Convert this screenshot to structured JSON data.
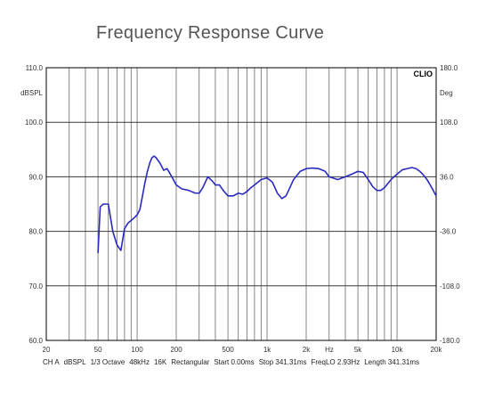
{
  "chart_data": {
    "type": "line",
    "title": "Frequency Response Curve",
    "brand": "CLIO",
    "y_left_unit": "dBSPL",
    "y_right_unit": "Deg",
    "x_unit_label": "Hz",
    "x_scale": "log",
    "xlim": [
      20,
      20000
    ],
    "ylim_left": [
      60,
      110
    ],
    "ylim_right": [
      -180,
      180
    ],
    "grid": true,
    "line_color": "#2a2ac0",
    "x_tick_labels": [
      {
        "value": 20,
        "label": "20"
      },
      {
        "value": 50,
        "label": "50"
      },
      {
        "value": 100,
        "label": "100"
      },
      {
        "value": 200,
        "label": "200"
      },
      {
        "value": 500,
        "label": "500"
      },
      {
        "value": 1000,
        "label": "1k"
      },
      {
        "value": 2000,
        "label": "2k"
      },
      {
        "value": 5000,
        "label": "5k"
      },
      {
        "value": 10000,
        "label": "10k"
      },
      {
        "value": 20000,
        "label": "20k"
      }
    ],
    "y_left_ticks": [
      "60.0",
      "70.0",
      "80.0",
      "90.0",
      "100.0",
      "110.0"
    ],
    "y_right_ticks": [
      "-180.0",
      "-108.0",
      "-36.0",
      "36.0",
      "108.0",
      "180.0"
    ],
    "series": [
      {
        "x": [
          50,
          52,
          55,
          60,
          65,
          70,
          75,
          80,
          85,
          90,
          95,
          100,
          105,
          110,
          115,
          120,
          125,
          130,
          135,
          140,
          150,
          160,
          170,
          180,
          190,
          200,
          220,
          250,
          280,
          300,
          320,
          350,
          380,
          400,
          430,
          460,
          500,
          550,
          600,
          650,
          700,
          750,
          800,
          900,
          1000,
          1100,
          1200,
          1300,
          1400,
          1600,
          1800,
          2000,
          2200,
          2500,
          2800,
          3000,
          3500,
          4000,
          4500,
          5000,
          5500,
          6000,
          6500,
          7000,
          7500,
          8000,
          9000,
          10000,
          11000,
          12000,
          13000,
          14000,
          15000,
          16000,
          17000,
          18000,
          19000,
          20000
        ],
        "y": [
          76,
          84.5,
          85,
          85,
          80,
          77.5,
          76.5,
          80.5,
          81.5,
          82,
          82.5,
          83,
          84,
          86.5,
          89,
          91,
          92.5,
          93.5,
          93.8,
          93.5,
          92.5,
          91.2,
          91.5,
          90.5,
          89.5,
          88.5,
          87.8,
          87.5,
          87,
          87,
          88,
          90,
          89.2,
          88.5,
          88.5,
          87.5,
          86.5,
          86.5,
          87,
          86.8,
          87.3,
          88,
          88.5,
          89.5,
          89.8,
          89,
          87,
          86,
          86.5,
          89.5,
          91,
          91.5,
          91.6,
          91.5,
          91,
          90,
          89.5,
          90,
          90.5,
          91,
          90.8,
          89.5,
          88.2,
          87.5,
          87.5,
          88,
          89.5,
          90.5,
          91.3,
          91.5,
          91.7,
          91.5,
          91,
          90.3,
          89.5,
          88.5,
          87.5,
          86.5
        ]
      }
    ]
  },
  "footer": {
    "items": [
      "CH A",
      "dBSPL",
      "1/3 Octave",
      "48kHz",
      "16K",
      "Rectangular",
      "Start 0.00ms",
      "Stop 341.31ms",
      "FreqLO 2.93Hz",
      "Length 341.31ms"
    ]
  }
}
